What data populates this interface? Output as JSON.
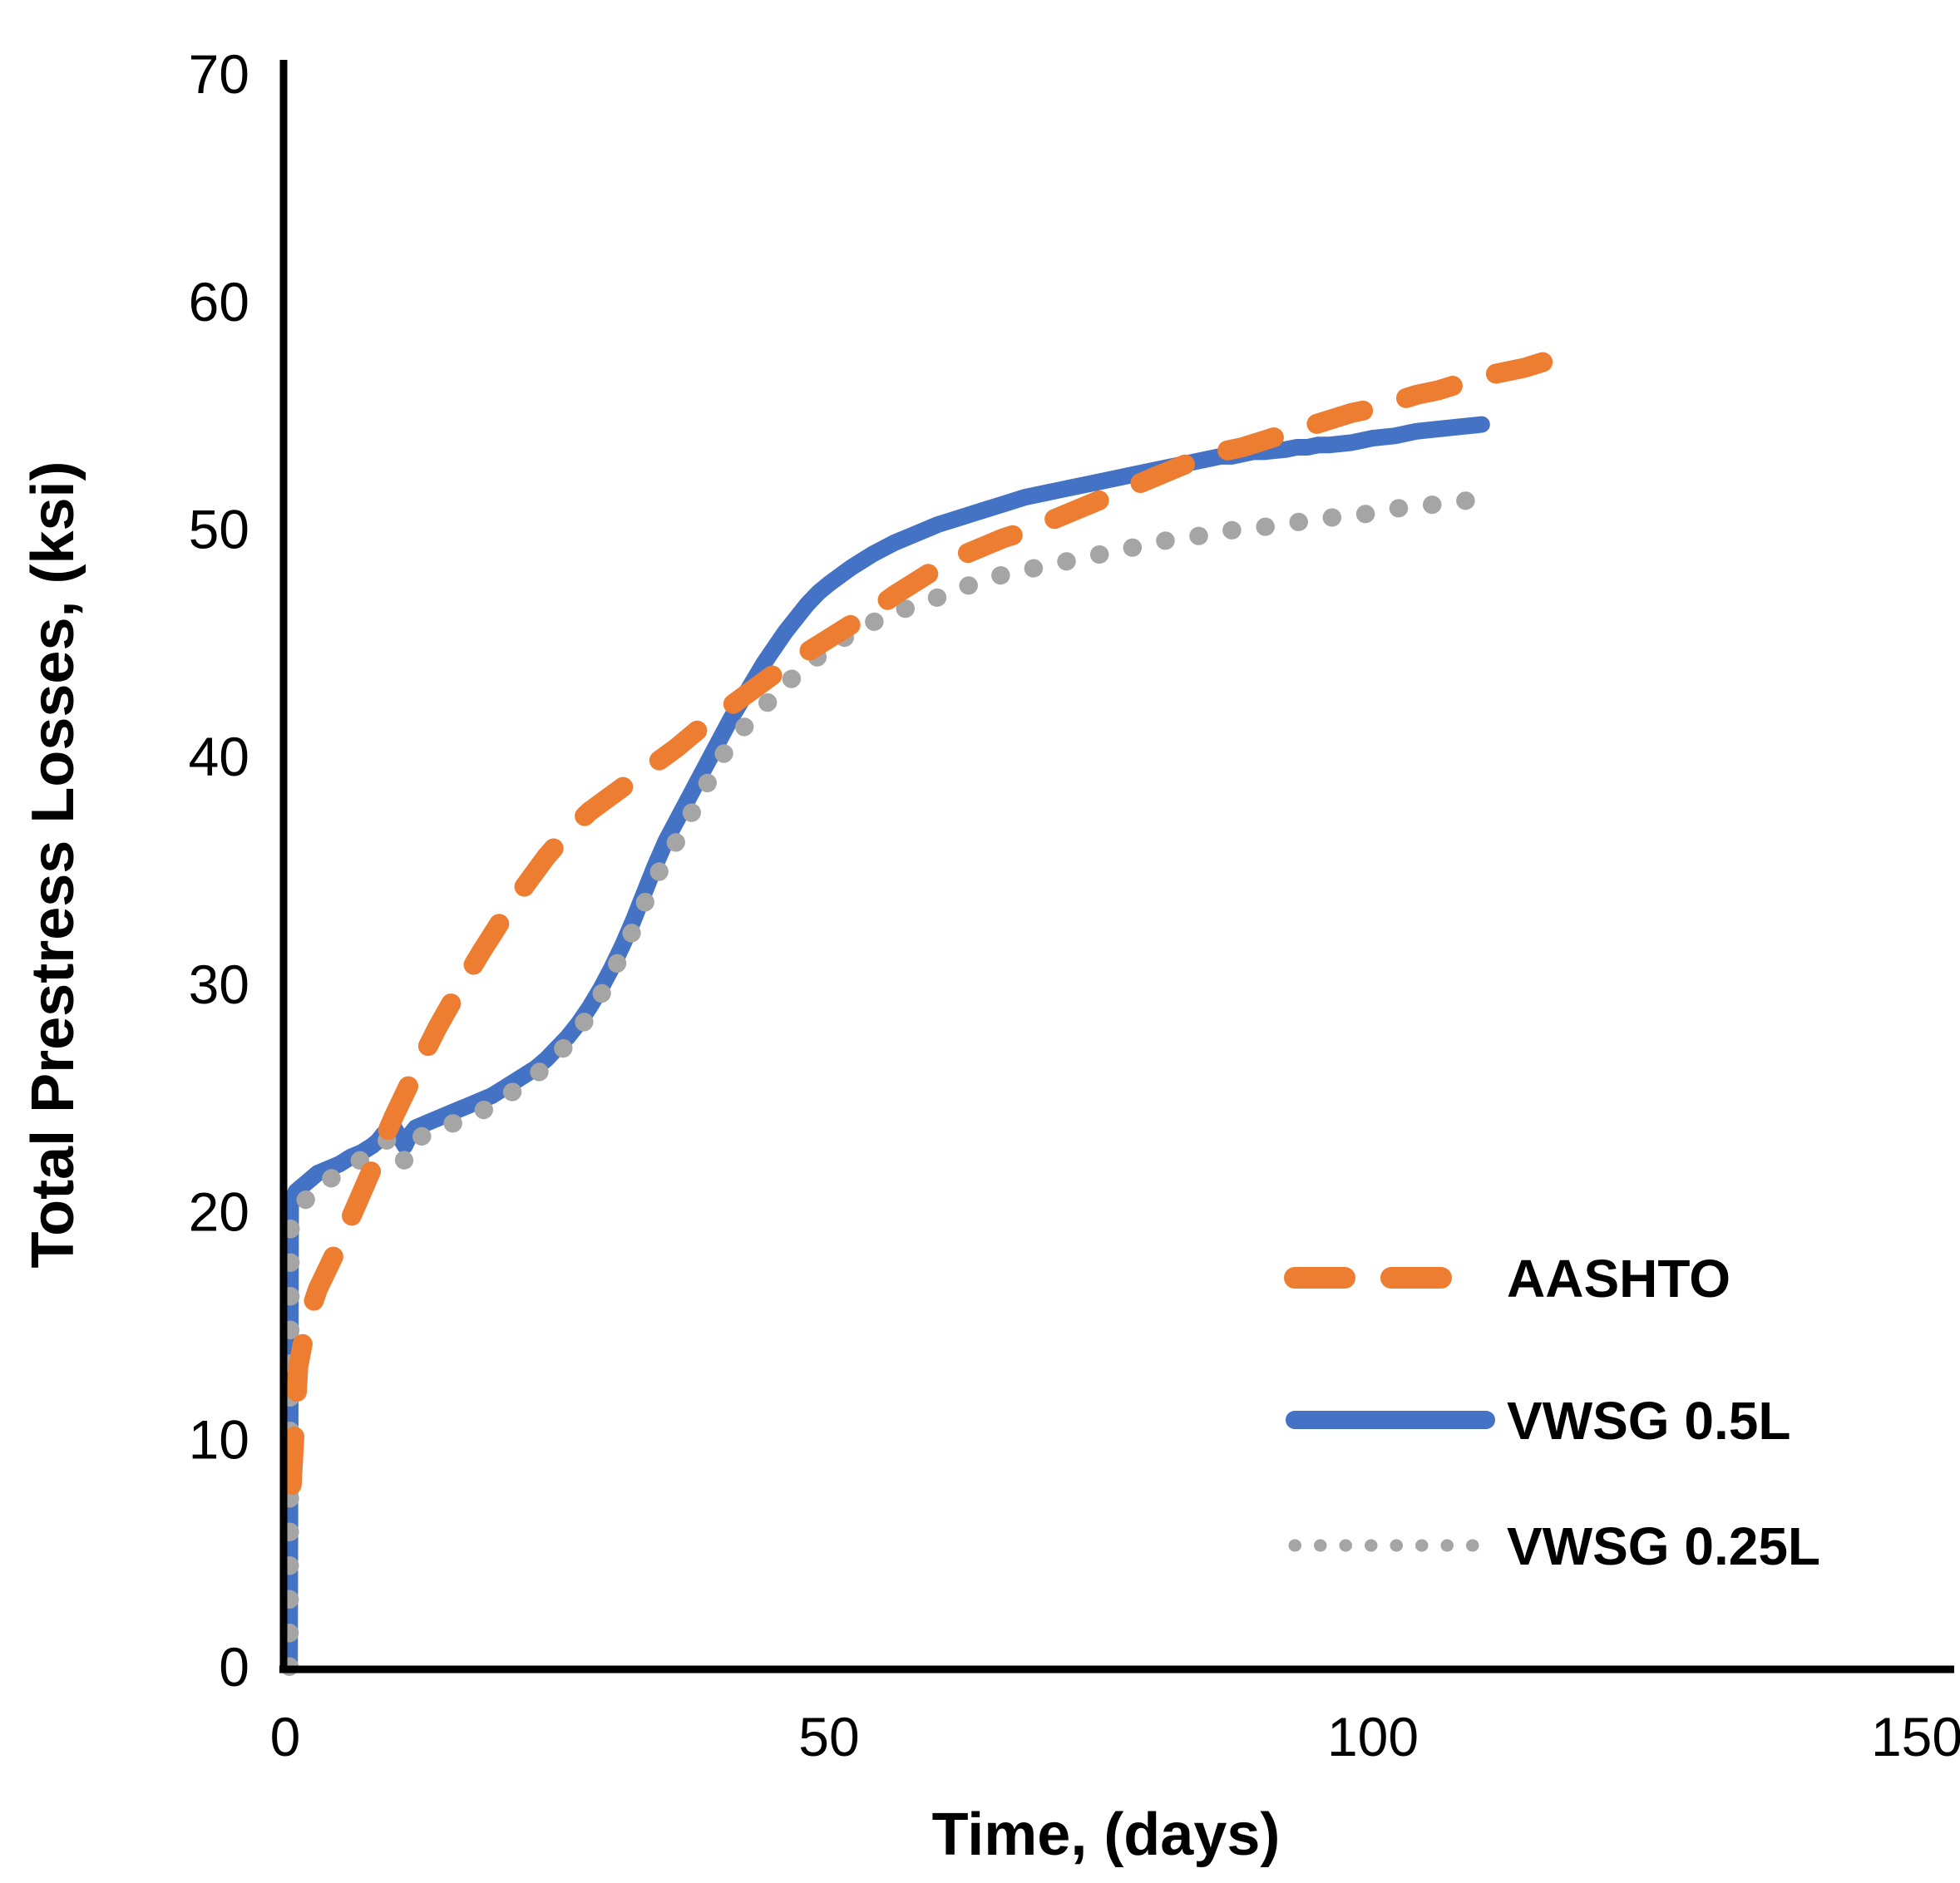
{
  "page": {
    "background": "#ffffff"
  },
  "chart_data": {
    "type": "line",
    "title": "",
    "xlabel": "Time, (days)",
    "ylabel": "Total Prestress Losses, (ksi)",
    "xlim": [
      0,
      150
    ],
    "ylim": [
      0,
      70
    ],
    "xticks": [
      0,
      50,
      100,
      150
    ],
    "yticks": [
      0,
      10,
      20,
      30,
      40,
      50,
      60,
      70
    ],
    "grid": false,
    "legend_position": "lower right",
    "axis_color": "#000000",
    "series": [
      {
        "name": "AASHTO",
        "color": "#ED7D31",
        "style": "dashed",
        "points": [
          [
            0.6,
            8
          ],
          [
            1.2,
            13.2
          ],
          [
            2,
            15.2
          ],
          [
            3,
            16.6
          ],
          [
            4,
            17.6
          ],
          [
            5,
            18.6
          ],
          [
            6,
            19.7
          ],
          [
            7,
            20.8
          ],
          [
            8,
            21.9
          ],
          [
            9,
            23.1
          ],
          [
            10,
            24.2
          ],
          [
            12,
            26.2
          ],
          [
            14,
            28.1
          ],
          [
            16,
            29.8
          ],
          [
            18,
            31.4
          ],
          [
            20,
            32.9
          ],
          [
            22,
            34.3
          ],
          [
            24,
            35.6
          ],
          [
            26,
            36.7
          ],
          [
            28,
            37.6
          ],
          [
            30,
            38.3
          ],
          [
            32,
            39.0
          ],
          [
            34,
            39.7
          ],
          [
            36,
            40.4
          ],
          [
            38,
            41.2
          ],
          [
            40,
            41.9
          ],
          [
            42,
            42.6
          ],
          [
            44,
            43.3
          ],
          [
            46,
            44.0
          ],
          [
            48,
            44.6
          ],
          [
            50,
            45.2
          ],
          [
            52,
            45.8
          ],
          [
            54,
            46.4
          ],
          [
            56,
            47.1
          ],
          [
            58,
            47.7
          ],
          [
            60,
            48.3
          ],
          [
            62,
            48.8
          ],
          [
            64,
            49.2
          ],
          [
            66,
            49.6
          ],
          [
            68,
            49.9
          ],
          [
            70,
            50.3
          ],
          [
            72,
            50.7
          ],
          [
            74,
            51.1
          ],
          [
            76,
            51.5
          ],
          [
            78,
            51.9
          ],
          [
            80,
            52.3
          ],
          [
            82,
            52.7
          ],
          [
            84,
            53.1
          ],
          [
            86,
            53.4
          ],
          [
            88,
            53.6
          ],
          [
            90,
            53.9
          ],
          [
            92,
            54.2
          ],
          [
            94,
            54.5
          ],
          [
            96,
            54.8
          ],
          [
            98,
            55.1
          ],
          [
            100,
            55.3
          ],
          [
            102,
            55.6
          ],
          [
            104,
            55.9
          ],
          [
            106,
            56.1
          ],
          [
            108,
            56.4
          ],
          [
            110,
            56.7
          ],
          [
            112,
            56.9
          ],
          [
            114,
            57.1
          ],
          [
            116,
            57.4
          ]
        ]
      },
      {
        "name": "VWSG 0.5L",
        "color": "#4472C4",
        "style": "solid",
        "points": [
          [
            0.4,
            0
          ],
          [
            0.5,
            20.3
          ],
          [
            1,
            20.9
          ],
          [
            2,
            21.3
          ],
          [
            3,
            21.7
          ],
          [
            4,
            21.9
          ],
          [
            5,
            22.1
          ],
          [
            6,
            22.4
          ],
          [
            7,
            22.6
          ],
          [
            8,
            22.9
          ],
          [
            8.5,
            23.1
          ],
          [
            9,
            23.4
          ],
          [
            9.5,
            23.6
          ],
          [
            10,
            23.7
          ],
          [
            10.5,
            23.3
          ],
          [
            11,
            22.9
          ],
          [
            11.5,
            23.4
          ],
          [
            12,
            23.7
          ],
          [
            13,
            23.9
          ],
          [
            14,
            24.1
          ],
          [
            15,
            24.3
          ],
          [
            16,
            24.5
          ],
          [
            17,
            24.7
          ],
          [
            18,
            24.9
          ],
          [
            19,
            25.1
          ],
          [
            20,
            25.4
          ],
          [
            21,
            25.7
          ],
          [
            22,
            26.0
          ],
          [
            23,
            26.3
          ],
          [
            24,
            26.7
          ],
          [
            25,
            27.2
          ],
          [
            26,
            27.7
          ],
          [
            27,
            28.3
          ],
          [
            28,
            29.0
          ],
          [
            29,
            29.8
          ],
          [
            30,
            30.7
          ],
          [
            31,
            31.7
          ],
          [
            32,
            32.8
          ],
          [
            33,
            34.0
          ],
          [
            34,
            35.2
          ],
          [
            35,
            36.3
          ],
          [
            36,
            37.2
          ],
          [
            37,
            38.1
          ],
          [
            38,
            39.0
          ],
          [
            39,
            39.9
          ],
          [
            40,
            40.8
          ],
          [
            41,
            41.7
          ],
          [
            42,
            42.5
          ],
          [
            43,
            43.3
          ],
          [
            44,
            44.1
          ],
          [
            45,
            44.8
          ],
          [
            46,
            45.5
          ],
          [
            47,
            46.1
          ],
          [
            48,
            46.7
          ],
          [
            49,
            47.2
          ],
          [
            50,
            47.6
          ],
          [
            52,
            48.3
          ],
          [
            54,
            48.9
          ],
          [
            56,
            49.4
          ],
          [
            58,
            49.8
          ],
          [
            60,
            50.2
          ],
          [
            62,
            50.5
          ],
          [
            64,
            50.8
          ],
          [
            66,
            51.1
          ],
          [
            68,
            51.4
          ],
          [
            70,
            51.6
          ],
          [
            72,
            51.8
          ],
          [
            74,
            52.0
          ],
          [
            76,
            52.2
          ],
          [
            78,
            52.4
          ],
          [
            80,
            52.6
          ],
          [
            82,
            52.8
          ],
          [
            84,
            53.0
          ],
          [
            85,
            53.1
          ],
          [
            86,
            53.2
          ],
          [
            87,
            53.2
          ],
          [
            88,
            53.3
          ],
          [
            89,
            53.4
          ],
          [
            90,
            53.4
          ],
          [
            92,
            53.5
          ],
          [
            93,
            53.6
          ],
          [
            94,
            53.6
          ],
          [
            95,
            53.7
          ],
          [
            96,
            53.7
          ],
          [
            98,
            53.8
          ],
          [
            99,
            53.9
          ],
          [
            100,
            54.0
          ],
          [
            102,
            54.1
          ],
          [
            104,
            54.3
          ],
          [
            106,
            54.4
          ],
          [
            108,
            54.5
          ],
          [
            110,
            54.6
          ]
        ]
      },
      {
        "name": "VWSG 0.25L",
        "color": "#A5A5A5",
        "style": "dotted",
        "points": [
          [
            0.4,
            0
          ],
          [
            0.5,
            19.4
          ],
          [
            1,
            20.0
          ],
          [
            2,
            20.6
          ],
          [
            3,
            21.1
          ],
          [
            4,
            21.4
          ],
          [
            5,
            21.7
          ],
          [
            6,
            22.0
          ],
          [
            7,
            22.3
          ],
          [
            8,
            22.6
          ],
          [
            8.5,
            22.8
          ],
          [
            9,
            23.0
          ],
          [
            9.5,
            23.2
          ],
          [
            10,
            23.3
          ],
          [
            10.5,
            22.7
          ],
          [
            11,
            22.2
          ],
          [
            11.5,
            22.8
          ],
          [
            12,
            23.2
          ],
          [
            13,
            23.4
          ],
          [
            14,
            23.6
          ],
          [
            15,
            23.8
          ],
          [
            16,
            24.0
          ],
          [
            17,
            24.2
          ],
          [
            18,
            24.4
          ],
          [
            19,
            24.7
          ],
          [
            20,
            25.0
          ],
          [
            21,
            25.3
          ],
          [
            22,
            25.6
          ],
          [
            23,
            26.0
          ],
          [
            24,
            26.4
          ],
          [
            25,
            26.9
          ],
          [
            26,
            27.4
          ],
          [
            27,
            28.0
          ],
          [
            28,
            28.7
          ],
          [
            29,
            29.5
          ],
          [
            30,
            30.4
          ],
          [
            31,
            31.4
          ],
          [
            32,
            32.4
          ],
          [
            33,
            33.5
          ],
          [
            34,
            34.6
          ],
          [
            35,
            35.5
          ],
          [
            36,
            36.3
          ],
          [
            37,
            37.2
          ],
          [
            38,
            38.1
          ],
          [
            39,
            39.0
          ],
          [
            40,
            39.9
          ],
          [
            41,
            40.6
          ],
          [
            42,
            41.2
          ],
          [
            43,
            41.7
          ],
          [
            44,
            42.2
          ],
          [
            45,
            42.7
          ],
          [
            46,
            43.2
          ],
          [
            47,
            43.6
          ],
          [
            48,
            44.0
          ],
          [
            49,
            44.4
          ],
          [
            50,
            44.8
          ],
          [
            52,
            45.4
          ],
          [
            54,
            45.9
          ],
          [
            56,
            46.3
          ],
          [
            58,
            46.7
          ],
          [
            60,
            47.0
          ],
          [
            62,
            47.4
          ],
          [
            64,
            47.7
          ],
          [
            66,
            48.0
          ],
          [
            68,
            48.2
          ],
          [
            70,
            48.4
          ],
          [
            72,
            48.6
          ],
          [
            74,
            48.8
          ],
          [
            76,
            49.0
          ],
          [
            78,
            49.2
          ],
          [
            80,
            49.4
          ],
          [
            82,
            49.6
          ],
          [
            84,
            49.7
          ],
          [
            86,
            49.9
          ],
          [
            88,
            50.0
          ],
          [
            90,
            50.1
          ],
          [
            92,
            50.2
          ],
          [
            94,
            50.4
          ],
          [
            96,
            50.5
          ],
          [
            98,
            50.6
          ],
          [
            100,
            50.7
          ],
          [
            102,
            50.9
          ],
          [
            104,
            51.0
          ],
          [
            106,
            51.1
          ],
          [
            108,
            51.2
          ],
          [
            110,
            51.4
          ]
        ]
      }
    ]
  }
}
